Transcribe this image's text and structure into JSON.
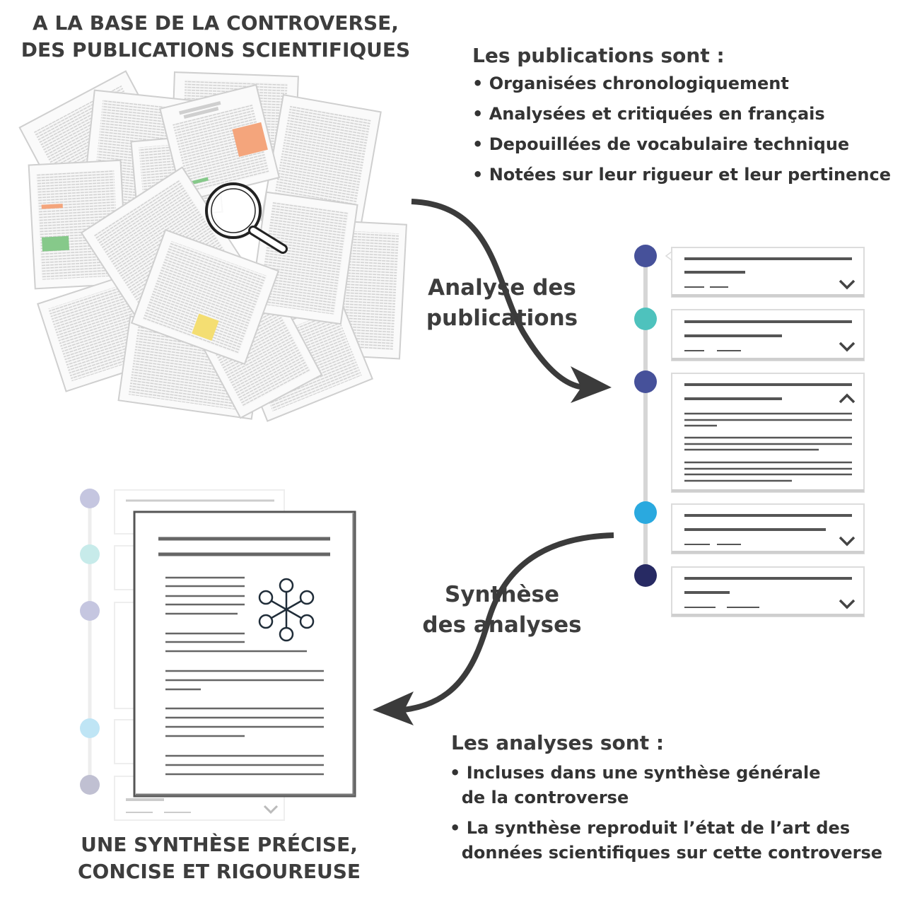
{
  "top_title": "A LA BASE DE LA CONTROVERSE,\nDES PUBLICATIONS SCIENTIFIQUES",
  "bottom_title": "UNE SYNTHÈSE PRÉCISE,\nCONCISE ET RIGOUREUSE",
  "arrow1_label": "Analyse des\npublications",
  "arrow2_label": "Synthèse\ndes analyses",
  "publications": {
    "title": "Les publications sont :",
    "bullets": [
      "• Organisées chronologiquement",
      "• Analysées et critiquées en français",
      "• Depouillées de vocabulaire technique",
      "• Notées sur leur rigueur et leur pertinence"
    ]
  },
  "analyses": {
    "title": "Les analyses sont :",
    "bullets": [
      "• Incluses dans une synthèse générale\n  de la controverse",
      "• La synthèse reproduit l’état de l’art des\n  données scientifiques sur cette controverse"
    ]
  },
  "colors": {
    "dark_text": "#3d3d3d",
    "arrow": "#3b3b3b",
    "timeline_dots": [
      "#46519a",
      "#4ec2bd",
      "#46519a",
      "#2aa9df",
      "#272a63"
    ],
    "faded_dots": [
      "#c5c6e0",
      "#c7ebea",
      "#c5c6e0",
      "#bfe5f5",
      "#c0c0d2"
    ],
    "highlight_orange": "#f4a57c",
    "highlight_green": "#86c98a",
    "highlight_yellow": "#f4de72"
  },
  "icons": [
    "magnifier-icon",
    "network-icon",
    "chevron-down-icon",
    "chevron-up-icon"
  ]
}
